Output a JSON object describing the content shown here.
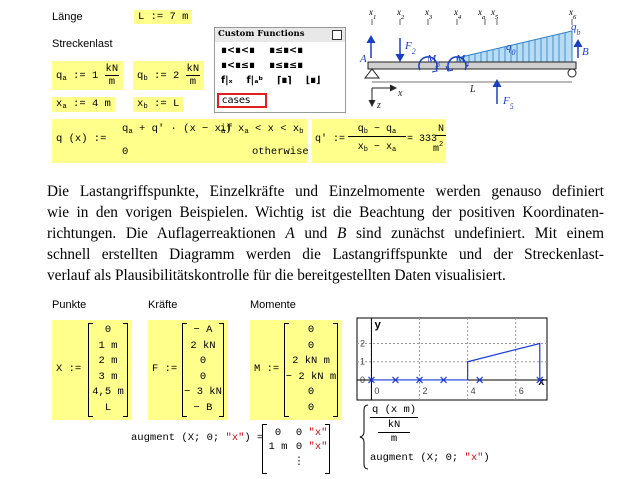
{
  "worksheet_top": {
    "length_label": "Länge",
    "length_def": "L := 7 m",
    "load_label": "Streckenlast",
    "qa_def": {
      "lhs": [
        "q",
        "a",
        " := 1 "
      ],
      "unit_num": "kN",
      "unit_den": "m"
    },
    "qb_def": {
      "lhs": [
        "q",
        "b",
        " := 2 "
      ],
      "unit_num": "kN",
      "unit_den": "m"
    },
    "xa_def": [
      "x",
      "a",
      " := 4 m"
    ],
    "xb_def": [
      "x",
      "b",
      " := L"
    ],
    "q_func": {
      "lhs": "q (x) :=",
      "case1_expr": [
        "q",
        "a",
        " + q' · (x − x",
        "a",
        ")"
      ],
      "case1_if": "if",
      "case1_cond": [
        "x",
        "a",
        " < x < x",
        "b"
      ],
      "case2_expr": "0",
      "case2_cond": "otherwise"
    },
    "q_slope": {
      "lhs": "q' :=",
      "num": [
        "q",
        "b",
        " − q",
        "a"
      ],
      "den": [
        "x",
        "b",
        " − x",
        "a"
      ],
      "result": "= 333",
      "unit_num": "N",
      "unit_den": [
        "m",
        "2"
      ]
    }
  },
  "palette": {
    "title": "Custom Functions",
    "rows": [
      [
        "∎<∎<∎",
        "∎≤∎<∎"
      ],
      [
        "∎<∎≤∎",
        "∎≤∎≤∎"
      ]
    ],
    "tools": [
      "f|ₓ",
      "f|ₐᵇ",
      "⌈∎⌉",
      "⌊∎⌋"
    ],
    "selected": "cases"
  },
  "diagram": {
    "x_labels": [
      [
        "x",
        "1"
      ],
      [
        "x",
        "2"
      ],
      [
        "x",
        "3"
      ],
      [
        "x",
        "4"
      ],
      [
        "x",
        "a"
      ],
      [
        "x",
        "5"
      ],
      [
        "x",
        "6"
      ]
    ],
    "A": "A",
    "B": "B",
    "F2": [
      "F",
      "2"
    ],
    "M3": [
      "M",
      "3"
    ],
    "M4": [
      "M",
      "4"
    ],
    "q0": [
      "q",
      "0"
    ],
    "qb": [
      "q",
      "b"
    ],
    "F5": [
      "F",
      "5"
    ],
    "L": "L",
    "x_axis": "x",
    "z_axis": "z"
  },
  "paragraph": {
    "lines": [
      "Die Lastangriffspunkte, Einzelkräfte und Einzelmomente werden genauso definiert",
      "wie in den vorigen Beispielen. Wichtig ist die Beachtung der positiven Koordinaten-",
      [
        "richtungen. Die Auflagerreaktionen ",
        "A",
        " und ",
        "B",
        " sind zunächst undefiniert. Mit einem"
      ],
      "schnell erstellten Diagramm werden die Lastangriffspunkte und der Streckenlast-",
      "verlauf als Plausibilitätskontrolle für die bereitgestellten Daten visualisiert."
    ]
  },
  "worksheet_bottom": {
    "points_label": "Punkte",
    "forces_label": "Kräfte",
    "moments_label": "Momente",
    "X": {
      "lhs": "X :=",
      "entries": [
        "0",
        "1 m",
        "2 m",
        "3 m",
        "4,5 m",
        "L"
      ]
    },
    "F": {
      "lhs": "F :=",
      "entries": [
        "− A",
        "2 kN",
        "0",
        "0",
        "− 3 kN",
        "− B"
      ]
    },
    "M": {
      "lhs": "M :=",
      "entries": [
        "0",
        "0",
        "2 kN m",
        "− 2 kN m",
        "0",
        "0"
      ]
    },
    "augment": {
      "expr": [
        "augment (X; 0; ",
        "\"x\"",
        ") ="
      ],
      "rows": [
        [
          "0",
          "0",
          "\"x\""
        ],
        [
          "1 m",
          "0",
          "\"x\""
        ]
      ],
      "more": "⋮"
    },
    "plot": {
      "x_label": "x",
      "y_label": "y",
      "xlim": [
        -0.6,
        7.3
      ],
      "ylim": [
        -1.1,
        3.4
      ],
      "xticks": [
        0,
        2,
        4,
        6
      ],
      "yticks": [
        0,
        1,
        2
      ],
      "grid": true,
      "line": {
        "color": "#1c3cd8",
        "x": [
          0,
          4,
          4,
          7,
          7
        ],
        "y": [
          0,
          0,
          1,
          2,
          0
        ]
      },
      "points": {
        "color": "#1c3cd8",
        "x": [
          0,
          1,
          2,
          3,
          4.5,
          7
        ],
        "y": [
          0,
          0,
          0,
          0,
          0,
          0
        ]
      },
      "legend": {
        "trace1_num": "q (x m)",
        "trace1_unit_num": "kN",
        "trace1_unit_den": "m",
        "trace2": [
          "augment (X; 0; ",
          "\"x\"",
          ")"
        ]
      }
    }
  }
}
